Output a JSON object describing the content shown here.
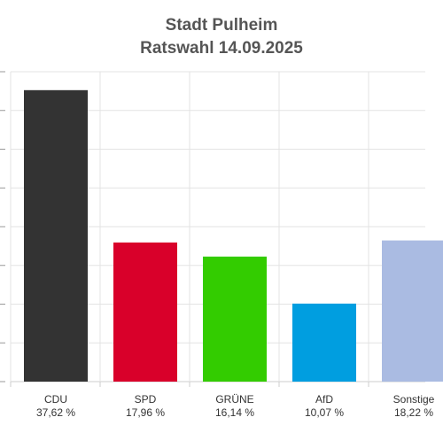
{
  "title": "Stadt Pulheim",
  "subtitle": "Ratswahl 14.09.2025",
  "chart_data": {
    "type": "bar",
    "title": "Stadt Pulheim",
    "subtitle": "Ratswahl 14.09.2025",
    "categories": [
      "CDU",
      "SPD",
      "GRÜNE",
      "AfD",
      "Sonstige"
    ],
    "values": [
      37.62,
      17.96,
      16.14,
      10.07,
      18.22
    ],
    "value_labels": [
      "37,62 %",
      "17,96 %",
      "16,14 %",
      "10,07 %",
      "18,22 %"
    ],
    "colors": [
      "#333333",
      "#d9002a",
      "#33cc00",
      "#009ee0",
      "#aabbe2"
    ],
    "ylim": [
      0,
      40
    ],
    "grid": true,
    "xlabel": "",
    "ylabel": ""
  }
}
